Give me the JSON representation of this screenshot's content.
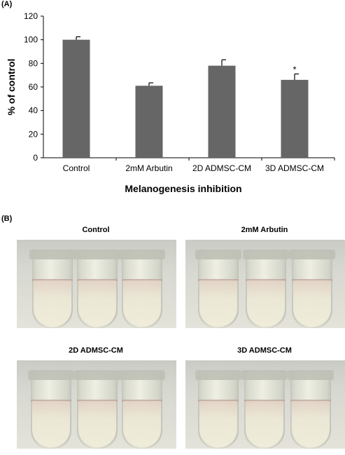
{
  "panels": {
    "a_label": "(A)",
    "b_label": "(B)"
  },
  "chart_data": {
    "type": "bar",
    "categories": [
      "Control",
      "2mM Arbutin",
      "2D ADMSC-CM",
      "3D ADMSC-CM"
    ],
    "values": [
      100,
      61,
      78,
      66
    ],
    "errors": [
      2.5,
      2.5,
      5,
      5
    ],
    "annotations": [
      "",
      "",
      "",
      "*"
    ],
    "xlabel": "Melanogenesis inhibition",
    "ylabel": "% of control",
    "ylim": [
      0,
      120
    ],
    "yticks": [
      0,
      20,
      40,
      60,
      80,
      100,
      120
    ],
    "bar_color": "#666666",
    "grid": false
  },
  "photos": [
    {
      "title": "Control"
    },
    {
      "title": "2mM Arbutin"
    },
    {
      "title": "2D ADMSC-CM"
    },
    {
      "title": "3D ADMSC-CM"
    }
  ]
}
